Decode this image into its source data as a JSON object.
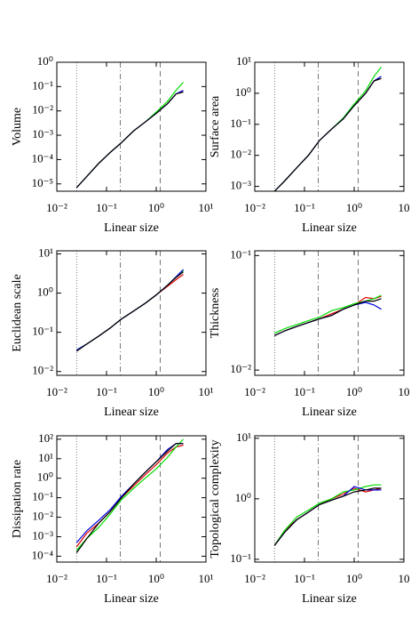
{
  "chart_data": [
    {
      "type": "line",
      "y_label": "Volume",
      "x_label": "Linear size",
      "log_x": true,
      "log_y": true,
      "xlim": [
        0.01,
        10
      ],
      "xticks": [
        {
          "value": 0.01,
          "label": "10⁻²"
        },
        {
          "value": 0.1,
          "label": "10⁻¹"
        },
        {
          "value": 1,
          "label": "10⁰"
        },
        {
          "value": 10,
          "label": "10¹"
        }
      ],
      "ylim": [
        5e-06,
        1
      ],
      "yticks": [
        {
          "value": 1e-05,
          "label": "10⁻⁵"
        },
        {
          "value": 0.0001,
          "label": "10⁻⁴"
        },
        {
          "value": 0.001,
          "label": "10⁻³"
        },
        {
          "value": 0.01,
          "label": "10⁻²"
        },
        {
          "value": 0.1,
          "label": "10⁻¹"
        },
        {
          "value": 1,
          "label": "10⁰"
        }
      ],
      "reference_lines": [
        {
          "value": 0.025,
          "style": "dotted"
        },
        {
          "value": 0.19,
          "style": "dashdot"
        },
        {
          "value": 1.2,
          "style": "dashed"
        }
      ],
      "x": [
        0.025,
        0.04,
        0.07,
        0.12,
        0.2,
        0.35,
        0.6,
        1,
        1.7,
        2.5,
        3.5
      ],
      "series": [
        {
          "name": "red",
          "color": "#e00000",
          "values": [
            7e-06,
            2e-05,
            7e-05,
            0.0002,
            0.0005,
            0.0015,
            0.0035,
            0.008,
            0.02,
            0.05,
            0.06
          ]
        },
        {
          "name": "green",
          "color": "#00dd00",
          "values": [
            7e-06,
            2e-05,
            7e-05,
            0.0002,
            0.0005,
            0.0015,
            0.0035,
            0.009,
            0.025,
            0.07,
            0.15
          ]
        },
        {
          "name": "blue",
          "color": "#0000e0",
          "values": [
            7e-06,
            2e-05,
            7e-05,
            0.0002,
            0.0005,
            0.0015,
            0.0035,
            0.008,
            0.02,
            0.05,
            0.07
          ]
        },
        {
          "name": "black",
          "color": "#000000",
          "values": [
            7e-06,
            2e-05,
            7e-05,
            0.0002,
            0.0005,
            0.0015,
            0.0035,
            0.008,
            0.02,
            0.05,
            0.06
          ]
        }
      ]
    },
    {
      "type": "line",
      "y_label": "Surface area",
      "x_label": "Linear size",
      "log_x": true,
      "log_y": true,
      "xlim": [
        0.01,
        10
      ],
      "xticks": [
        {
          "value": 0.01,
          "label": "10⁻²"
        },
        {
          "value": 0.1,
          "label": "10⁻¹"
        },
        {
          "value": 1,
          "label": "10⁰"
        },
        {
          "value": 10,
          "label": "10"
        }
      ],
      "ylim": [
        0.0007,
        10
      ],
      "yticks": [
        {
          "value": 0.001,
          "label": "10⁻³"
        },
        {
          "value": 0.01,
          "label": "10⁻²"
        },
        {
          "value": 0.1,
          "label": "10⁻¹"
        },
        {
          "value": 1,
          "label": "10⁰"
        },
        {
          "value": 10,
          "label": "10¹"
        }
      ],
      "reference_lines": [
        {
          "value": 0.025,
          "style": "dotted"
        },
        {
          "value": 0.19,
          "style": "dashdot"
        },
        {
          "value": 1.2,
          "style": "dashed"
        }
      ],
      "x": [
        0.025,
        0.04,
        0.07,
        0.12,
        0.2,
        0.35,
        0.6,
        1,
        1.7,
        2.5,
        3.5
      ],
      "series": [
        {
          "name": "red",
          "color": "#e00000",
          "values": [
            0.0007,
            0.0015,
            0.004,
            0.01,
            0.03,
            0.07,
            0.15,
            0.4,
            1,
            2.5,
            3
          ]
        },
        {
          "name": "green",
          "color": "#00dd00",
          "values": [
            0.0007,
            0.0015,
            0.004,
            0.01,
            0.03,
            0.07,
            0.16,
            0.45,
            1.2,
            3.5,
            7
          ]
        },
        {
          "name": "blue",
          "color": "#0000e0",
          "values": [
            0.0007,
            0.0015,
            0.004,
            0.01,
            0.03,
            0.07,
            0.15,
            0.4,
            1,
            2.5,
            3.5
          ]
        },
        {
          "name": "black",
          "color": "#000000",
          "values": [
            0.0007,
            0.0015,
            0.004,
            0.01,
            0.03,
            0.07,
            0.15,
            0.4,
            1,
            2.5,
            3
          ]
        }
      ]
    },
    {
      "type": "line",
      "y_label": "Euclidean scale",
      "x_label": "Linear size",
      "log_x": true,
      "log_y": true,
      "xlim": [
        0.01,
        10
      ],
      "xticks": [
        {
          "value": 0.01,
          "label": "10⁻²"
        },
        {
          "value": 0.1,
          "label": "10⁻¹"
        },
        {
          "value": 1,
          "label": "10⁰"
        },
        {
          "value": 10,
          "label": "10¹"
        }
      ],
      "ylim": [
        0.008,
        12
      ],
      "yticks": [
        {
          "value": 0.01,
          "label": "10⁻²"
        },
        {
          "value": 0.1,
          "label": "10⁻¹"
        },
        {
          "value": 1,
          "label": "10⁰"
        },
        {
          "value": 10,
          "label": "10¹"
        }
      ],
      "reference_lines": [
        {
          "value": 0.025,
          "style": "dotted"
        },
        {
          "value": 0.19,
          "style": "dashdot"
        },
        {
          "value": 1.2,
          "style": "dashed"
        }
      ],
      "x": [
        0.025,
        0.04,
        0.07,
        0.12,
        0.2,
        0.35,
        0.6,
        1,
        1.7,
        2.5,
        3.5
      ],
      "series": [
        {
          "name": "red",
          "color": "#e00000",
          "values": [
            0.035,
            0.05,
            0.08,
            0.13,
            0.22,
            0.35,
            0.55,
            0.9,
            1.5,
            2.2,
            3
          ]
        },
        {
          "name": "green",
          "color": "#00dd00",
          "values": [
            0.035,
            0.05,
            0.08,
            0.13,
            0.22,
            0.35,
            0.55,
            0.9,
            1.6,
            2.6,
            3.8
          ]
        },
        {
          "name": "blue",
          "color": "#0000e0",
          "values": [
            0.035,
            0.05,
            0.08,
            0.13,
            0.22,
            0.35,
            0.55,
            0.9,
            1.6,
            2.6,
            4
          ]
        },
        {
          "name": "black",
          "color": "#000000",
          "values": [
            0.033,
            0.05,
            0.08,
            0.13,
            0.22,
            0.35,
            0.55,
            0.9,
            1.6,
            2.5,
            3.5
          ]
        }
      ]
    },
    {
      "type": "line",
      "y_label": "Thickness",
      "x_label": "Linear size",
      "log_x": true,
      "log_y": true,
      "xlim": [
        0.01,
        10
      ],
      "xticks": [
        {
          "value": 0.01,
          "label": "10⁻²"
        },
        {
          "value": 0.1,
          "label": "10⁻¹"
        },
        {
          "value": 1,
          "label": "10⁰"
        },
        {
          "value": 10,
          "label": "10"
        }
      ],
      "ylim": [
        0.009,
        0.11
      ],
      "yticks": [
        {
          "value": 0.01,
          "label": "10⁻²"
        },
        {
          "value": 0.1,
          "label": "10⁻¹"
        }
      ],
      "reference_lines": [
        {
          "value": 0.025,
          "style": "dotted"
        },
        {
          "value": 0.19,
          "style": "dashdot"
        },
        {
          "value": 1.2,
          "style": "dashed"
        }
      ],
      "x": [
        0.025,
        0.04,
        0.07,
        0.12,
        0.2,
        0.35,
        0.6,
        1,
        1.7,
        2.5,
        3.5
      ],
      "series": [
        {
          "name": "red",
          "color": "#e00000",
          "values": [
            0.02,
            0.022,
            0.024,
            0.026,
            0.028,
            0.031,
            0.034,
            0.037,
            0.043,
            0.042,
            0.044
          ]
        },
        {
          "name": "green",
          "color": "#00dd00",
          "values": [
            0.021,
            0.023,
            0.025,
            0.027,
            0.029,
            0.033,
            0.035,
            0.038,
            0.04,
            0.042,
            0.045
          ]
        },
        {
          "name": "blue",
          "color": "#0000e0",
          "values": [
            0.02,
            0.022,
            0.024,
            0.026,
            0.028,
            0.03,
            0.034,
            0.037,
            0.039,
            0.037,
            0.034
          ]
        },
        {
          "name": "black",
          "color": "#000000",
          "values": [
            0.02,
            0.022,
            0.024,
            0.026,
            0.028,
            0.03,
            0.034,
            0.037,
            0.04,
            0.04,
            0.042
          ]
        }
      ]
    },
    {
      "type": "line",
      "y_label": "Dissipation rate",
      "x_label": "Linear size",
      "log_x": true,
      "log_y": true,
      "xlim": [
        0.01,
        10
      ],
      "xticks": [
        {
          "value": 0.01,
          "label": "10⁻²"
        },
        {
          "value": 0.1,
          "label": "10⁻¹"
        },
        {
          "value": 1,
          "label": "10⁰"
        },
        {
          "value": 10,
          "label": "10¹"
        }
      ],
      "ylim": [
        5e-05,
        150
      ],
      "yticks": [
        {
          "value": 0.0001,
          "label": "10⁻⁴"
        },
        {
          "value": 0.001,
          "label": "10⁻³"
        },
        {
          "value": 0.01,
          "label": "10⁻²"
        },
        {
          "value": 0.1,
          "label": "10⁻¹"
        },
        {
          "value": 1,
          "label": "10⁰"
        },
        {
          "value": 10,
          "label": "10¹"
        },
        {
          "value": 100,
          "label": "10²"
        }
      ],
      "reference_lines": [
        {
          "value": 0.025,
          "style": "dotted"
        },
        {
          "value": 0.19,
          "style": "dashdot"
        },
        {
          "value": 1.2,
          "style": "dashed"
        }
      ],
      "x": [
        0.025,
        0.04,
        0.07,
        0.12,
        0.2,
        0.35,
        0.6,
        1,
        1.7,
        2.5,
        3.5
      ],
      "series": [
        {
          "name": "red",
          "color": "#e00000",
          "values": [
            0.0003,
            0.0015,
            0.005,
            0.02,
            0.1,
            0.4,
            1.5,
            5,
            20,
            40,
            50
          ]
        },
        {
          "name": "green",
          "color": "#00dd00",
          "values": [
            0.0002,
            0.0008,
            0.003,
            0.015,
            0.08,
            0.3,
            1,
            3,
            12,
            40,
            100
          ]
        },
        {
          "name": "blue",
          "color": "#0000e0",
          "values": [
            0.0005,
            0.002,
            0.007,
            0.025,
            0.12,
            0.5,
            2,
            7,
            30,
            60,
            60
          ]
        },
        {
          "name": "black",
          "color": "#000000",
          "values": [
            0.00015,
            0.0008,
            0.005,
            0.02,
            0.1,
            0.5,
            2,
            7,
            25,
            60,
            60
          ]
        }
      ]
    },
    {
      "type": "line",
      "y_label": "Topological complexity",
      "x_label": "Linear size",
      "log_x": true,
      "log_y": true,
      "xlim": [
        0.01,
        10
      ],
      "xticks": [
        {
          "value": 0.01,
          "label": "10⁻²"
        },
        {
          "value": 0.1,
          "label": "10⁻¹"
        },
        {
          "value": 1,
          "label": "10⁰"
        },
        {
          "value": 10,
          "label": "10"
        }
      ],
      "ylim": [
        0.09,
        11
      ],
      "yticks": [
        {
          "value": 0.1,
          "label": "10⁻¹"
        },
        {
          "value": 1,
          "label": "10⁰"
        },
        {
          "value": 10,
          "label": "10¹"
        }
      ],
      "reference_lines": [
        {
          "value": 0.025,
          "style": "dotted"
        },
        {
          "value": 0.19,
          "style": "dashdot"
        },
        {
          "value": 1.2,
          "style": "dashed"
        }
      ],
      "x": [
        0.025,
        0.04,
        0.07,
        0.12,
        0.2,
        0.35,
        0.6,
        1,
        1.7,
        2.5,
        3.5
      ],
      "series": [
        {
          "name": "red",
          "color": "#e00000",
          "values": [
            0.17,
            0.3,
            0.45,
            0.6,
            0.8,
            1,
            1.2,
            1.5,
            1.3,
            1.4,
            1.5
          ]
        },
        {
          "name": "green",
          "color": "#00dd00",
          "values": [
            0.17,
            0.3,
            0.5,
            0.65,
            0.85,
            1,
            1.3,
            1.4,
            1.6,
            1.7,
            1.7
          ]
        },
        {
          "name": "blue",
          "color": "#0000e0",
          "values": [
            0.17,
            0.28,
            0.45,
            0.6,
            0.8,
            0.95,
            1.1,
            1.6,
            1.4,
            1.4,
            1.4
          ]
        },
        {
          "name": "black",
          "color": "#000000",
          "values": [
            0.17,
            0.28,
            0.45,
            0.6,
            0.8,
            0.95,
            1.1,
            1.3,
            1.4,
            1.5,
            1.5
          ]
        }
      ]
    }
  ]
}
